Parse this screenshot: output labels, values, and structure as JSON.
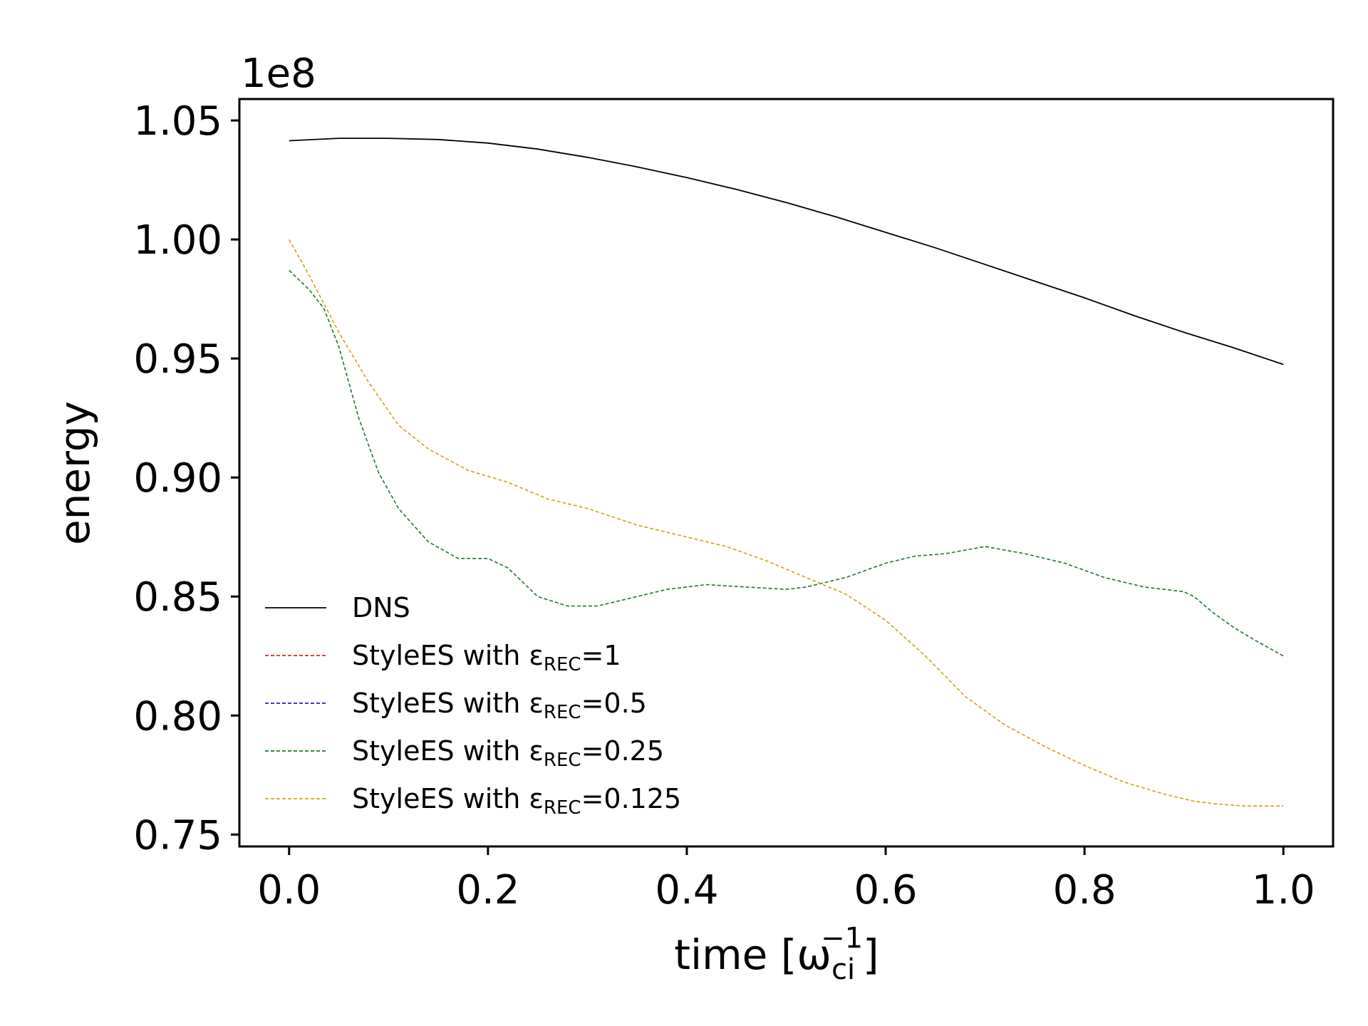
{
  "chart_data": {
    "type": "line",
    "xlabel": {
      "main": "time [ω",
      "sup": "−1",
      "sub": "ci",
      "close": "]"
    },
    "ylabel": "energy",
    "y_offset_label": "1e8",
    "xlim": [
      -0.05,
      1.05
    ],
    "ylim": [
      0.745,
      1.059
    ],
    "x_ticks": [
      0.0,
      0.2,
      0.4,
      0.6,
      0.8,
      1.0
    ],
    "x_tick_labels": [
      "0.0",
      "0.2",
      "0.4",
      "0.6",
      "0.8",
      "1.0"
    ],
    "y_ticks": [
      0.75,
      0.8,
      0.85,
      0.9,
      0.95,
      1.0,
      1.05
    ],
    "y_tick_labels": [
      "0.75",
      "0.80",
      "0.85",
      "0.90",
      "0.95",
      "1.00",
      "1.05"
    ],
    "grid": false,
    "legend_position": "lower-left",
    "series": [
      {
        "name": "DNS",
        "color": "#000000",
        "dash": "solid",
        "x": [
          0.0,
          0.05,
          0.1,
          0.15,
          0.2,
          0.25,
          0.3,
          0.35,
          0.4,
          0.45,
          0.5,
          0.55,
          0.6,
          0.65,
          0.7,
          0.75,
          0.8,
          0.85,
          0.9,
          0.95,
          1.0
        ],
        "y": [
          1.0415,
          1.0425,
          1.0425,
          1.042,
          1.0405,
          1.038,
          1.0345,
          1.0305,
          1.026,
          1.021,
          1.0155,
          1.0095,
          1.003,
          0.9965,
          0.9895,
          0.9825,
          0.9755,
          0.968,
          0.961,
          0.9545,
          0.9475
        ]
      },
      {
        "name": "StyleES with ε",
        "name_sub": "REC",
        "name_suffix": "=1",
        "color": "#d62728",
        "dash": "dashed",
        "x": [],
        "y": []
      },
      {
        "name": "StyleES with ε",
        "name_sub": "REC",
        "name_suffix": "=0.5",
        "color": "#1f1fd6",
        "dash": "dashed",
        "x": [],
        "y": []
      },
      {
        "name": "StyleES with ε",
        "name_sub": "REC",
        "name_suffix": "=0.25",
        "color": "#1a7a2a",
        "dash": "dashed",
        "x": [
          0.0,
          0.02,
          0.035,
          0.05,
          0.07,
          0.09,
          0.11,
          0.14,
          0.17,
          0.2,
          0.22,
          0.25,
          0.28,
          0.31,
          0.34,
          0.38,
          0.42,
          0.46,
          0.5,
          0.52,
          0.56,
          0.6,
          0.63,
          0.66,
          0.7,
          0.74,
          0.78,
          0.82,
          0.86,
          0.9,
          0.91,
          0.93,
          0.95,
          0.97,
          1.0
        ],
        "y": [
          0.987,
          0.979,
          0.971,
          0.955,
          0.925,
          0.902,
          0.887,
          0.873,
          0.866,
          0.866,
          0.862,
          0.85,
          0.846,
          0.846,
          0.849,
          0.853,
          0.855,
          0.854,
          0.853,
          0.854,
          0.858,
          0.864,
          0.867,
          0.868,
          0.871,
          0.868,
          0.864,
          0.858,
          0.854,
          0.852,
          0.85,
          0.843,
          0.837,
          0.832,
          0.825
        ]
      },
      {
        "name": "StyleES with ε",
        "name_sub": "REC",
        "name_suffix": "=0.125",
        "color": "#d4a017",
        "dash": "dashed",
        "x": [
          0.0,
          0.02,
          0.05,
          0.08,
          0.11,
          0.14,
          0.18,
          0.22,
          0.26,
          0.3,
          0.35,
          0.4,
          0.44,
          0.48,
          0.52,
          0.56,
          0.6,
          0.64,
          0.68,
          0.72,
          0.76,
          0.8,
          0.84,
          0.88,
          0.91,
          0.93,
          0.96,
          1.0
        ],
        "y": [
          1.0,
          0.985,
          0.961,
          0.94,
          0.922,
          0.912,
          0.903,
          0.898,
          0.891,
          0.887,
          0.88,
          0.875,
          0.871,
          0.865,
          0.858,
          0.851,
          0.84,
          0.825,
          0.808,
          0.796,
          0.787,
          0.779,
          0.772,
          0.767,
          0.764,
          0.763,
          0.762,
          0.762
        ]
      }
    ]
  }
}
